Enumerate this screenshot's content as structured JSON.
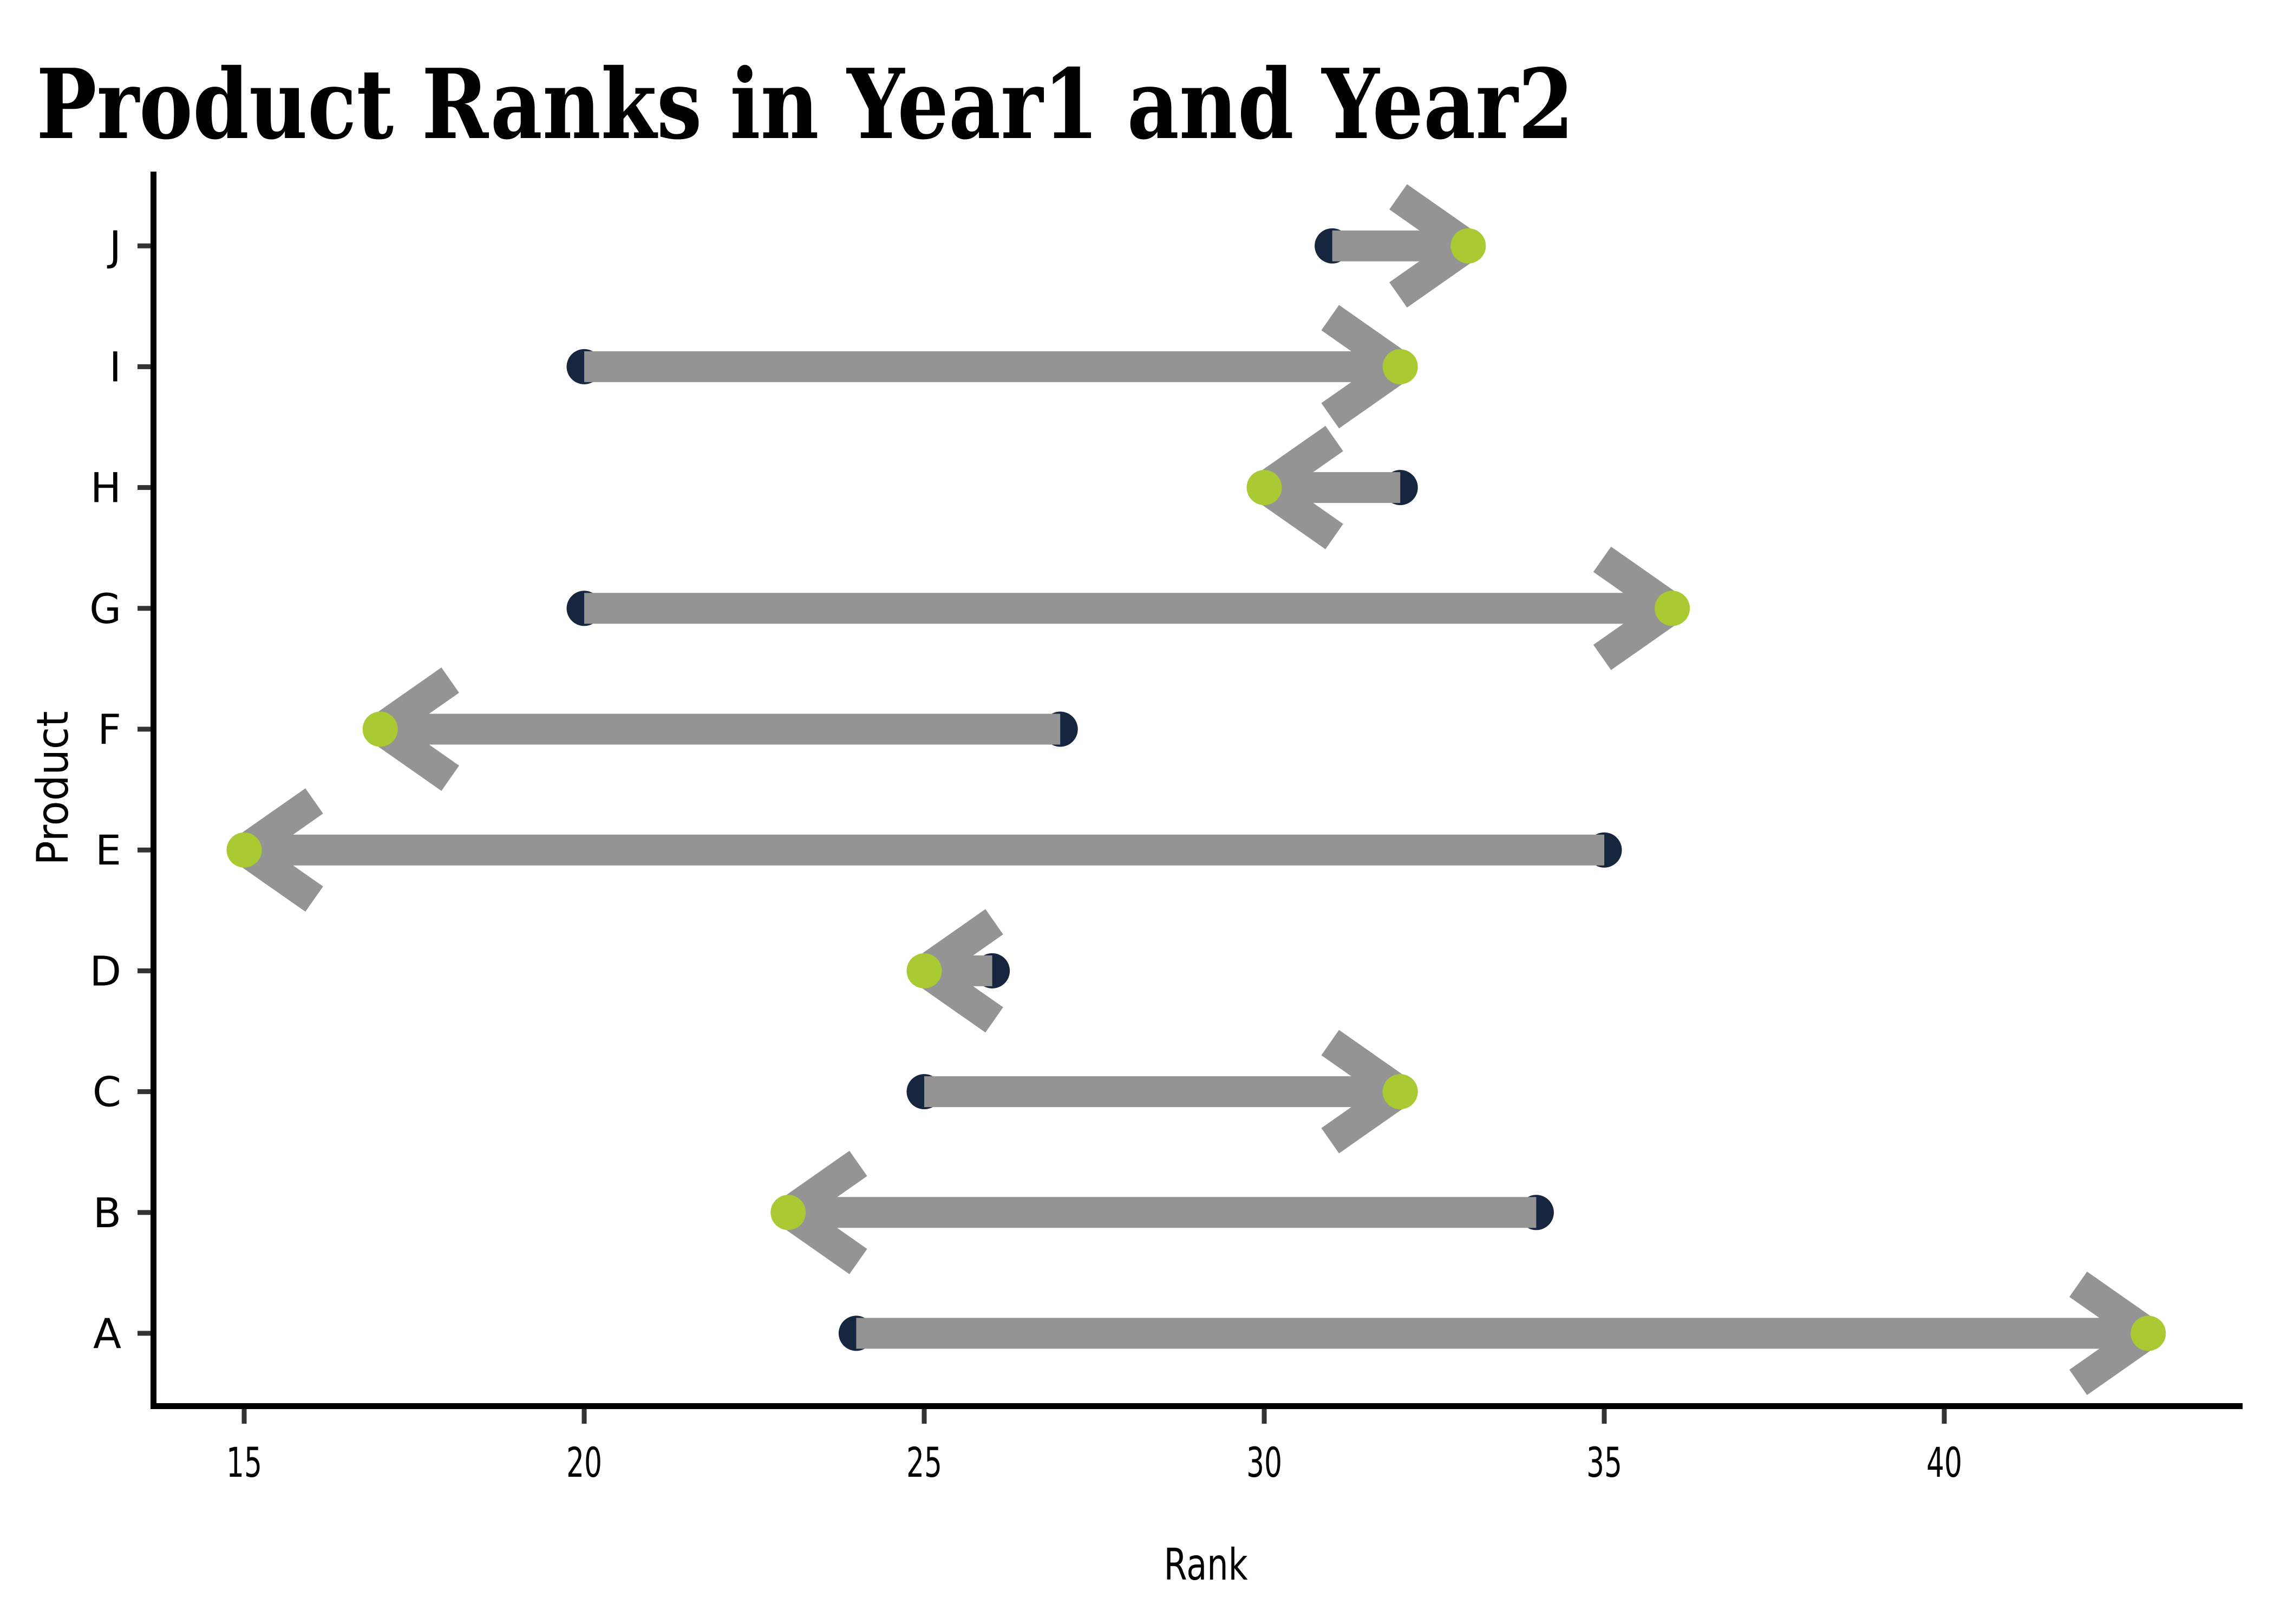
{
  "title": "Product Ranks in Year1 and Year2",
  "chart_data": {
    "type": "arrow-dumbbell",
    "title": "Product Ranks in Year1 and Year2",
    "xlabel": "Rank",
    "ylabel": "Product",
    "x_ticks": [
      15,
      20,
      25,
      30,
      35,
      40
    ],
    "xlim": [
      13.6,
      44.4
    ],
    "grid": false,
    "legend": "none",
    "categories": [
      "A",
      "B",
      "C",
      "D",
      "E",
      "F",
      "G",
      "H",
      "I",
      "J"
    ],
    "series": [
      {
        "name": "Year1",
        "values": [
          24,
          34,
          25,
          26,
          35,
          27,
          20,
          32,
          20,
          31
        ]
      },
      {
        "name": "Year2",
        "values": [
          43,
          23,
          32,
          25,
          15,
          17,
          36,
          30,
          32,
          33
        ]
      }
    ],
    "arrows": [
      {
        "product": "A",
        "year1": 24,
        "year2": 43,
        "direction": "right"
      },
      {
        "product": "B",
        "year1": 34,
        "year2": 23,
        "direction": "left"
      },
      {
        "product": "C",
        "year1": 25,
        "year2": 32,
        "direction": "right"
      },
      {
        "product": "D",
        "year1": 26,
        "year2": 25,
        "direction": "left"
      },
      {
        "product": "E",
        "year1": 35,
        "year2": 15,
        "direction": "left"
      },
      {
        "product": "F",
        "year1": 27,
        "year2": 17,
        "direction": "left"
      },
      {
        "product": "G",
        "year1": 20,
        "year2": 36,
        "direction": "right"
      },
      {
        "product": "H",
        "year1": 32,
        "year2": 30,
        "direction": "left"
      },
      {
        "product": "I",
        "year1": 20,
        "year2": 32,
        "direction": "right"
      },
      {
        "product": "J",
        "year1": 31,
        "year2": 33,
        "direction": "right"
      }
    ]
  },
  "colors": {
    "year1_dot": "#17263f",
    "year2_dot": "#a9ca33",
    "arrow": "#949494",
    "axis_line": "#000000",
    "tick_mark": "#333333",
    "text": "#000000",
    "background": "#ffffff"
  }
}
